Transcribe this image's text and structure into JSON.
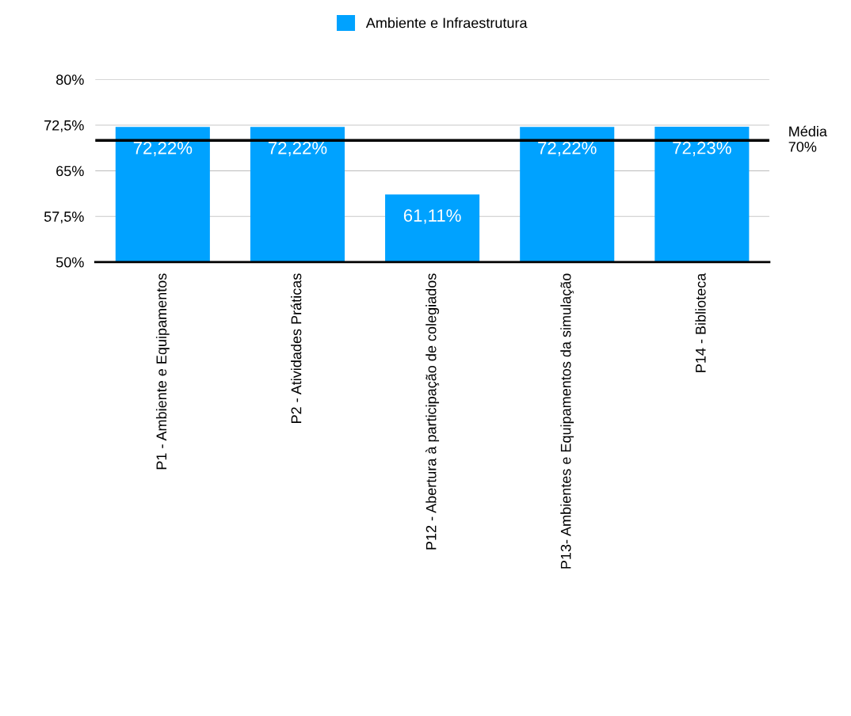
{
  "chart_data": {
    "type": "bar",
    "categories": [
      "P1 - Ambiente e Equipamentos",
      "P2 - Atividades Práticas",
      "P12 - Abertura à participação de colegiados",
      "P13- Ambientes e Equipamentos da simulação",
      "P14 - Biblioteca"
    ],
    "series": [
      {
        "name": "Ambiente e Infraestrutura",
        "color": "#00a2ff",
        "values": [
          72.22,
          72.22,
          61.11,
          72.22,
          72.23
        ],
        "value_labels": [
          "72,22%",
          "72,22%",
          "61,11%",
          "72,22%",
          "72,23%"
        ]
      }
    ],
    "ylim": [
      50,
      80
    ],
    "yticks": [
      {
        "value": 50,
        "label": "50%"
      },
      {
        "value": 57.5,
        "label": "57,5%"
      },
      {
        "value": 65,
        "label": "65%"
      },
      {
        "value": 72.5,
        "label": "72,5%"
      },
      {
        "value": 80,
        "label": "80%"
      }
    ],
    "grid": "y",
    "legend": "top",
    "ref_lines": [
      {
        "axis": "y",
        "value": 70,
        "label": "Média\n70%",
        "color": "#000000"
      }
    ]
  }
}
